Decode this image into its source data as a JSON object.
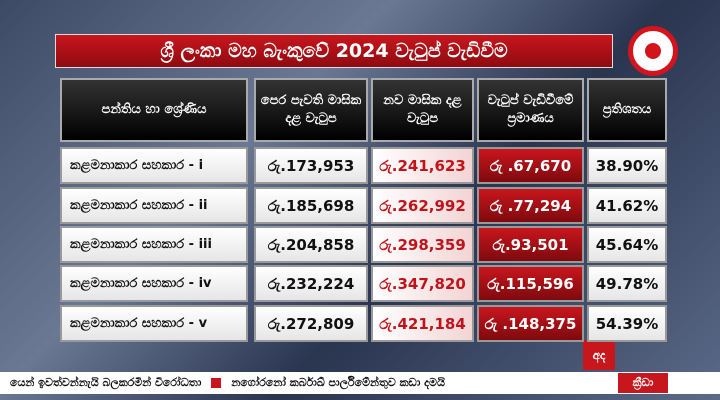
{
  "header": {
    "title": "ශ්‍රී ලංකා මහ බැංකුවේ 2024 වැටුප් වැඩිවීම"
  },
  "table": {
    "columns": [
      "පන්තිය හා ශ්‍රේණිය",
      "පෙර පැවති මාසික දළ වැටුප",
      "නව මාසික දළ වැටුප",
      "වැටුප් වැඩිවීමේ ප්‍රමාණය",
      "ප්‍රතිශතය"
    ],
    "rows": [
      [
        "කළමනාකාර සහකාර - i",
        "රු.173,953",
        "රු.241,623",
        "රු .67,670",
        "38.90%"
      ],
      [
        "කළමනාකාර සහකාර - ii",
        "රු.185,698",
        "රු.262,992",
        "රු .77,294",
        "41.62%"
      ],
      [
        "කළමනාකාර සහකාර - iii",
        "රු.204,858",
        "රු.298,359",
        "රු.93,501",
        "45.64%"
      ],
      [
        "කළමනාකාර සහකාර - iv",
        "රු.232,224",
        "රු.347,820",
        "රු.115,596",
        "49.78%"
      ],
      [
        "කළමනාකාර සහකාර - v",
        "රු.272,809",
        "රු.421,184",
        "රු .148,375",
        "54.39%"
      ]
    ]
  },
  "logo": {
    "label": "අද"
  },
  "ticker": {
    "items": [
      "යෙන් ඉවත්වන්නැයි බලකරමින් විරෝධතා",
      "නගෝරනෝ කර්බාඛ් පාර්ලිමේන්තුව කඩා දමයි"
    ],
    "section": "ක්‍රීඩා"
  }
}
